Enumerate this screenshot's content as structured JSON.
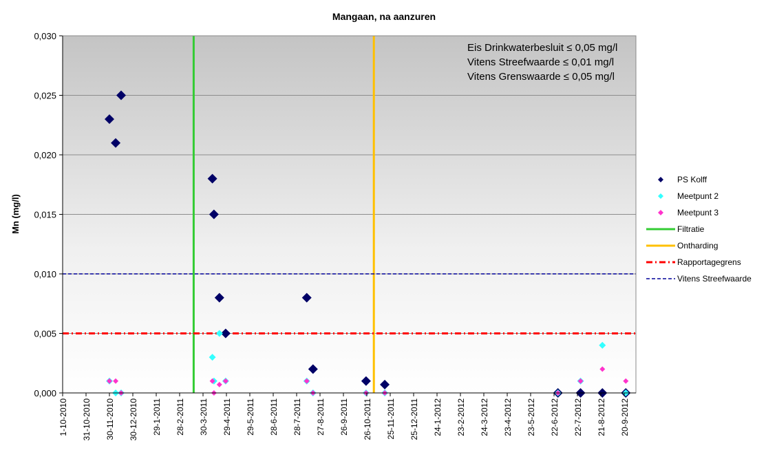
{
  "chart_data": {
    "type": "scatter",
    "title": "Mangaan,  na aanzuren",
    "ylabel": "Mn (mg/l)",
    "xlabel": "",
    "ylim": [
      0,
      0.03
    ],
    "xlim": [
      "2010-10-01",
      "2012-10-05"
    ],
    "y_ticks": [
      0,
      0.005,
      0.01,
      0.015,
      0.02,
      0.025,
      0.03
    ],
    "y_tick_labels": [
      "0,000",
      "0,005",
      "0,010",
      "0,015",
      "0,020",
      "0,025",
      "0,030"
    ],
    "x_ticks": [
      "2010-10-01",
      "2010-10-31",
      "2010-11-30",
      "2010-12-30",
      "2011-01-29",
      "2011-02-28",
      "2011-03-30",
      "2011-04-29",
      "2011-05-29",
      "2011-06-28",
      "2011-07-28",
      "2011-08-27",
      "2011-09-26",
      "2011-10-26",
      "2011-11-25",
      "2011-12-25",
      "2012-01-24",
      "2012-02-23",
      "2012-03-24",
      "2012-04-23",
      "2012-05-23",
      "2012-06-22",
      "2012-07-22",
      "2012-08-21",
      "2012-09-20"
    ],
    "x_tick_labels": [
      "1-10-2010",
      "31-10-2010",
      "30-11-2010",
      "30-12-2010",
      "29-1-2011",
      "28-2-2011",
      "30-3-2011",
      "29-4-2011",
      "29-5-2011",
      "28-6-2011",
      "28-7-2011",
      "27-8-2011",
      "26-9-2011",
      "26-10-2011",
      "25-11-2011",
      "25-12-2011",
      "24-1-2012",
      "23-2-2012",
      "24-3-2012",
      "23-4-2012",
      "23-5-2012",
      "22-6-2012",
      "22-7-2012",
      "21-8-2012",
      "20-9-2012"
    ],
    "grid": true,
    "legend_position": "right",
    "annotation_lines": [
      "Eis Drinkwaterbesluit ≤ 0,05 mg/l",
      "Vitens  Streefwaarde ≤ 0,01 mg/l",
      "Vitens Grenswaarde ≤ 0,05 mg/l"
    ],
    "series": [
      {
        "name": "PS Kolff",
        "kind": "point",
        "color": "#000066",
        "points": [
          [
            "2010-11-30",
            0.023
          ],
          [
            "2010-12-08",
            0.021
          ],
          [
            "2010-12-15",
            0.025
          ],
          [
            "2011-04-11",
            0.018
          ],
          [
            "2011-04-13",
            0.015
          ],
          [
            "2011-04-20",
            0.008
          ],
          [
            "2011-04-28",
            0.005
          ],
          [
            "2011-08-10",
            0.008
          ],
          [
            "2011-08-18",
            0.002
          ],
          [
            "2011-10-25",
            0.001
          ],
          [
            "2011-11-18",
            0.0007
          ],
          [
            "2012-06-27",
            0.0
          ],
          [
            "2012-07-26",
            0.0
          ],
          [
            "2012-08-23",
            0.0
          ],
          [
            "2012-09-22",
            0.0
          ]
        ]
      },
      {
        "name": "Meetpunt 2",
        "kind": "point",
        "color": "#33FFFF",
        "points": [
          [
            "2010-11-30",
            0.001
          ],
          [
            "2010-12-08",
            0.0
          ],
          [
            "2010-12-15",
            0.0
          ],
          [
            "2011-04-11",
            0.003
          ],
          [
            "2011-04-13",
            0.001
          ],
          [
            "2011-04-20",
            0.005
          ],
          [
            "2011-04-28",
            0.001
          ],
          [
            "2011-08-10",
            0.001
          ],
          [
            "2011-08-18",
            0.0
          ],
          [
            "2011-10-25",
            0.0
          ],
          [
            "2011-11-18",
            0.0
          ],
          [
            "2012-06-27",
            0.0
          ],
          [
            "2012-07-26",
            0.001
          ],
          [
            "2012-08-23",
            0.004
          ],
          [
            "2012-09-22",
            0.0
          ]
        ]
      },
      {
        "name": "Meetpunt 3",
        "kind": "point",
        "color": "#FF33CC",
        "points": [
          [
            "2010-11-30",
            0.001
          ],
          [
            "2010-12-08",
            0.001
          ],
          [
            "2010-12-15",
            0.0
          ],
          [
            "2011-04-11",
            0.001
          ],
          [
            "2011-04-13",
            0.0
          ],
          [
            "2011-04-20",
            0.0007
          ],
          [
            "2011-04-28",
            0.001
          ],
          [
            "2011-08-10",
            0.001
          ],
          [
            "2011-08-18",
            0.0
          ],
          [
            "2011-10-25",
            0.0
          ],
          [
            "2011-11-18",
            0.0
          ],
          [
            "2012-06-27",
            0.0
          ],
          [
            "2012-07-26",
            0.001
          ],
          [
            "2012-08-23",
            0.002
          ],
          [
            "2012-09-22",
            0.001
          ]
        ]
      },
      {
        "name": "Filtratie",
        "kind": "vline",
        "color": "#33CC33",
        "x": "2011-03-18"
      },
      {
        "name": "Ontharding",
        "kind": "vline",
        "color": "#FFC000",
        "x": "2011-11-04"
      },
      {
        "name": "Rapportagegrens",
        "kind": "hline",
        "color": "#FF0000",
        "y": 0.005,
        "dash": "dashdot"
      },
      {
        "name": "Vitens Streefwaarde",
        "kind": "hline",
        "color": "#000099",
        "y": 0.01,
        "dash": "dash"
      }
    ]
  }
}
